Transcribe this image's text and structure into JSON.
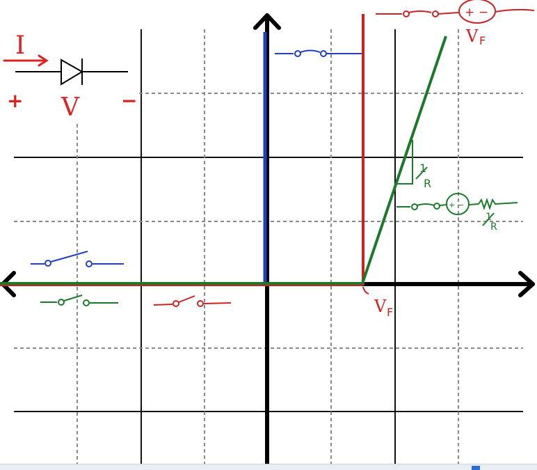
{
  "colors": {
    "axis": "#000000",
    "grid_solid": "#111111",
    "grid_dashed": "#8a8a8a",
    "ideal_switch": "#1f3fbf",
    "constant_drop": "#cc2222",
    "piecewise_linear": "#1a7a2a"
  },
  "labels": {
    "current": "I",
    "plus": "+",
    "voltage": "V",
    "minus": "−",
    "vf_top": "V",
    "vf_top_sub": "F",
    "vf_axis": "V",
    "vf_axis_sub": "F",
    "slope_num": "1",
    "slope_den": "R",
    "model_res_num": "1",
    "model_res_den": "R",
    "source_plus": "+",
    "source_minus": "−",
    "source_green": "+ −"
  },
  "icons": [
    "arrow-icon",
    "diode-icon",
    "switch-open-icon",
    "switch-closed-icon",
    "voltage-source-icon",
    "resistor-icon"
  ]
}
